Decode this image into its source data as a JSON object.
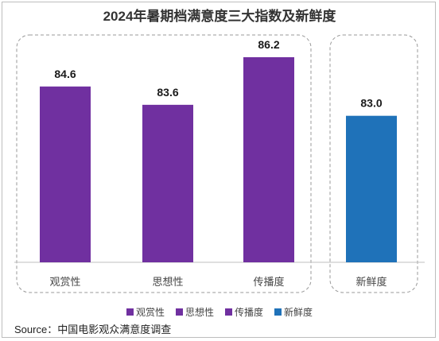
{
  "chart_data": {
    "type": "bar",
    "title": "2024年暑期档满意度三大指数及新鲜度",
    "categories": [
      "观赏性",
      "思想性",
      "传播度",
      "新鲜度"
    ],
    "values": [
      84.6,
      83.6,
      86.2,
      83.0
    ],
    "data_labels": [
      "84.6",
      "83.6",
      "86.2",
      "83.0"
    ],
    "colors": [
      "#7030a0",
      "#7030a0",
      "#7030a0",
      "#1f72b9"
    ],
    "groups": [
      [
        "观赏性",
        "思想性",
        "传播度"
      ],
      [
        "新鲜度"
      ]
    ],
    "legend": [
      {
        "label": "观赏性",
        "color": "#7030a0"
      },
      {
        "label": "思想性",
        "color": "#7030a0"
      },
      {
        "label": "传播度",
        "color": "#7030a0"
      },
      {
        "label": "新鲜度",
        "color": "#1f72b9"
      }
    ],
    "legend_position": "bottom",
    "ylim": [
      75,
      87.5
    ],
    "grid": false,
    "source": "Source：中国电影观众满意度调查"
  }
}
